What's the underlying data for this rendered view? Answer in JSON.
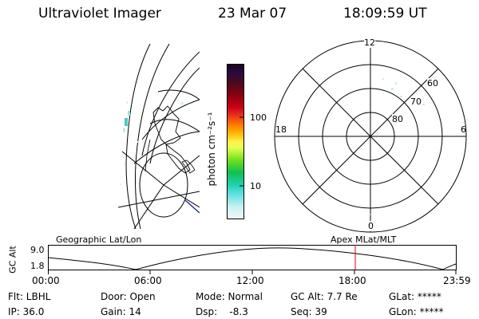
{
  "header": {
    "instrument": "Ultraviolet Imager",
    "date": "23 Mar 07",
    "time": "18:09:59 UT"
  },
  "colorbar": {
    "label": "photon cm⁻²s⁻¹",
    "ticks": [
      "100",
      "10"
    ]
  },
  "polar_plot": {
    "mlt_labels": [
      "12",
      "18",
      "6",
      "0"
    ],
    "lat_labels": [
      "60",
      "70",
      "80"
    ]
  },
  "timeline": {
    "left_label": "Geographic Lat/Lon",
    "right_label": "Apex MLat/MLT",
    "y_axis_title": "GC Alt",
    "y_ticks": [
      "9.0",
      "1.8"
    ],
    "x_ticks": [
      "00:00",
      "06:00",
      "12:00",
      "18:00",
      "23:59"
    ],
    "current_marker_time": "18:09:59",
    "marker_color": "#e00000"
  },
  "status": {
    "flt": "Flt: LBHL",
    "ip": "IP: 36.0",
    "door": "Door: Open",
    "gain": "Gain: 14",
    "mode": "Mode: Normal",
    "dsp": "Dsp:    -8.3",
    "gc_alt": "GC Alt: 7.7 Re",
    "seq": "Seq: 39",
    "glat": "GLat: *****",
    "glon": "GLon: *****"
  }
}
